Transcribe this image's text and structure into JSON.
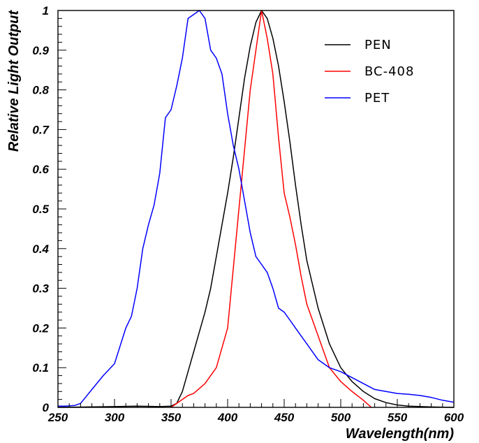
{
  "chart_data": {
    "type": "line",
    "title": "",
    "xlabel": "Wavelength(nm)",
    "ylabel": "Relative Light Output",
    "xlim": [
      250,
      600
    ],
    "ylim": [
      0,
      1
    ],
    "x_ticks": [
      250,
      300,
      350,
      400,
      450,
      500,
      550,
      600
    ],
    "x_tick_labels": [
      "250",
      "300",
      "350",
      "400",
      "450",
      "500",
      "550",
      "600"
    ],
    "y_ticks": [
      0,
      0.1,
      0.2,
      0.3,
      0.4,
      0.5,
      0.6,
      0.7,
      0.8,
      0.9,
      1
    ],
    "y_tick_labels": [
      "0",
      "0.1",
      "0.2",
      "0.3",
      "0.4",
      "0.5",
      "0.6",
      "0.7",
      "0.8",
      "0.9",
      "1"
    ],
    "grid": false,
    "legend_position": "top-right",
    "series": [
      {
        "name": "PEN",
        "color": "#000000",
        "x": [
          250,
          300,
          320,
          340,
          350,
          355,
          360,
          365,
          370,
          375,
          380,
          385,
          390,
          395,
          400,
          405,
          410,
          415,
          420,
          425,
          430,
          435,
          440,
          445,
          450,
          455,
          460,
          465,
          470,
          480,
          490,
          500,
          510,
          520,
          530,
          540,
          550,
          560,
          580,
          600
        ],
        "y": [
          0,
          0.002,
          0.003,
          0.002,
          0.003,
          0.01,
          0.04,
          0.09,
          0.14,
          0.19,
          0.24,
          0.3,
          0.38,
          0.46,
          0.54,
          0.63,
          0.73,
          0.83,
          0.91,
          0.97,
          1.0,
          0.98,
          0.93,
          0.86,
          0.77,
          0.67,
          0.56,
          0.46,
          0.37,
          0.25,
          0.16,
          0.1,
          0.065,
          0.04,
          0.022,
          0.012,
          0.006,
          0.003,
          0.001,
          0
        ]
      },
      {
        "name": "BC-408",
        "color": "#ff0000",
        "x": [
          350,
          360,
          365,
          370,
          380,
          390,
          395,
          400,
          405,
          410,
          415,
          420,
          425,
          430,
          435,
          440,
          445,
          450,
          455,
          460,
          465,
          470,
          480,
          490,
          500,
          510,
          520,
          527
        ],
        "y": [
          0,
          0.02,
          0.03,
          0.035,
          0.06,
          0.1,
          0.15,
          0.2,
          0.35,
          0.5,
          0.65,
          0.8,
          0.9,
          1.0,
          0.93,
          0.84,
          0.68,
          0.54,
          0.48,
          0.41,
          0.33,
          0.26,
          0.18,
          0.1,
          0.065,
          0.04,
          0.018,
          0
        ]
      },
      {
        "name": "PET",
        "color": "#0000ff",
        "x": [
          250,
          257,
          265,
          270,
          280,
          290,
          300,
          310,
          315,
          320,
          325,
          330,
          335,
          340,
          345,
          350,
          355,
          360,
          365,
          370,
          375,
          380,
          385,
          390,
          395,
          400,
          405,
          410,
          415,
          420,
          425,
          430,
          435,
          440,
          445,
          450,
          455,
          460,
          465,
          470,
          480,
          490,
          500,
          510,
          520,
          530,
          540,
          550,
          560,
          570,
          580,
          590,
          600
        ],
        "y": [
          0.003,
          0.003,
          0.005,
          0.01,
          0.045,
          0.08,
          0.11,
          0.2,
          0.23,
          0.3,
          0.4,
          0.46,
          0.51,
          0.59,
          0.73,
          0.75,
          0.81,
          0.88,
          0.98,
          0.99,
          1.0,
          0.98,
          0.9,
          0.88,
          0.84,
          0.74,
          0.66,
          0.6,
          0.52,
          0.44,
          0.38,
          0.36,
          0.34,
          0.3,
          0.25,
          0.24,
          0.22,
          0.2,
          0.18,
          0.16,
          0.12,
          0.1,
          0.09,
          0.075,
          0.06,
          0.045,
          0.04,
          0.035,
          0.033,
          0.03,
          0.025,
          0.018,
          0.013
        ]
      }
    ]
  }
}
